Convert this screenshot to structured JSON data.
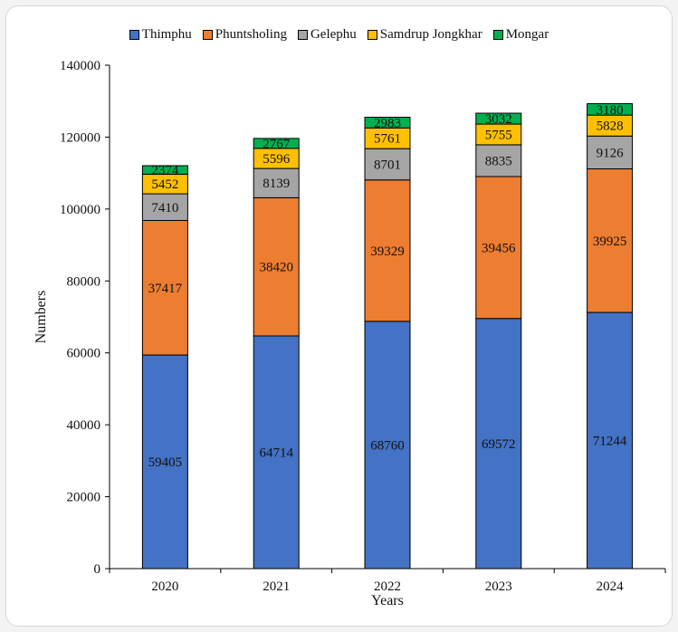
{
  "chart_data": {
    "type": "bar",
    "stacked": true,
    "categories": [
      "2020",
      "2021",
      "2022",
      "2023",
      "2024"
    ],
    "series": [
      {
        "name": "Thimphu",
        "color": "#4472c4",
        "values": [
          59405,
          64714,
          68760,
          69572,
          71244
        ]
      },
      {
        "name": "Phuntsholing",
        "color": "#ed7d31",
        "values": [
          37417,
          38420,
          39329,
          39456,
          39925
        ]
      },
      {
        "name": "Gelephu",
        "color": "#a5a5a5",
        "values": [
          7410,
          8139,
          8701,
          8835,
          9126
        ]
      },
      {
        "name": "Samdrup Jongkhar",
        "color": "#ffc000",
        "values": [
          5452,
          5596,
          5761,
          5755,
          5828
        ]
      },
      {
        "name": "Mongar",
        "color": "#00b050",
        "values": [
          2374,
          2767,
          2983,
          3032,
          3180
        ]
      }
    ],
    "xlabel": "Years",
    "ylabel": "Numbers",
    "ylim": [
      0,
      140000
    ],
    "yticks": [
      "0",
      "20000",
      "40000",
      "60000",
      "80000",
      "100000",
      "120000",
      "140000"
    ],
    "grid": false,
    "legend_position": "top"
  }
}
